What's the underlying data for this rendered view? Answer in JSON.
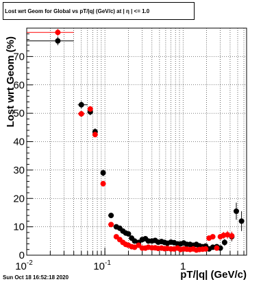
{
  "title": "Lost wrt Geom for Global vs pT/|q| (GeV/c) at | η | <= 1.0",
  "timestamp": "Sun Oct 18 16:52:18 2020",
  "chart_data": {
    "type": "scatter",
    "title": "Lost wrt Geom for Global vs pT/|q| (GeV/c) at | η | <= 1.0",
    "xlabel": "pT/|q| (GeV/c)",
    "ylabel": "Lost wrt Geom (%)",
    "xscale": "log",
    "xlim": [
      0.01,
      6.5
    ],
    "ylim": [
      0,
      80
    ],
    "grid": true,
    "x_ticks": [
      {
        "label": "10",
        "exp": "-2",
        "value": 0.01
      },
      {
        "label": "10",
        "exp": "-1",
        "value": 0.1
      },
      {
        "label": "1",
        "exp": "",
        "value": 1
      }
    ],
    "y_ticks": [
      "0",
      "10",
      "20",
      "30",
      "40",
      "50",
      "60",
      "70"
    ],
    "y_tick_values": [
      0,
      10,
      20,
      30,
      40,
      50,
      60,
      70
    ],
    "series": [
      {
        "color": "#000000",
        "x": [
          0.025,
          0.05,
          0.065,
          0.075,
          0.095,
          0.12,
          0.14,
          0.155,
          0.17,
          0.185,
          0.2,
          0.22,
          0.24,
          0.27,
          0.3,
          0.33,
          0.36,
          0.4,
          0.44,
          0.48,
          0.53,
          0.58,
          0.63,
          0.7,
          0.77,
          0.85,
          0.93,
          1.02,
          1.12,
          1.23,
          1.35,
          1.48,
          1.62,
          1.78,
          1.95,
          2.15,
          2.4,
          2.7,
          3.0,
          3.4,
          4.2,
          4.8,
          5.6
        ],
        "y": [
          75.5,
          53.0,
          50.5,
          43.5,
          29.0,
          14.0,
          10.0,
          9.5,
          8.5,
          7.8,
          7.5,
          6.0,
          5.0,
          4.5,
          5.5,
          5.8,
          5.0,
          5.0,
          5.2,
          4.6,
          4.8,
          4.5,
          4.2,
          4.6,
          4.4,
          4.0,
          4.0,
          4.3,
          3.8,
          3.8,
          3.5,
          3.8,
          3.3,
          3.0,
          3.2,
          2.2,
          2.8,
          3.0,
          2.5,
          4.5,
          6.5,
          15.5,
          12.0
        ],
        "xerr": [
          0.04,
          0.06,
          0.07,
          0.08,
          0.1,
          0.13,
          0.15,
          0.16,
          0.18,
          0.19,
          0.21,
          0.23,
          0.25,
          0.28,
          0.31,
          0.34,
          0.38,
          0.42,
          0.46,
          0.5,
          0.55,
          0.6,
          0.66,
          0.73,
          0.8,
          0.88,
          0.97,
          1.06,
          1.17,
          1.28,
          1.4,
          1.54,
          1.69,
          1.85,
          2.03,
          2.25,
          2.5,
          2.8,
          3.2,
          3.6,
          4.4,
          5.2,
          6.0
        ],
        "xerr_lo": [
          0.01,
          0.045,
          0.06,
          0.07,
          0.09,
          0.11,
          0.13,
          0.15,
          0.16,
          0.18,
          0.19,
          0.21,
          0.23,
          0.26,
          0.29,
          0.32,
          0.35,
          0.38,
          0.42,
          0.46,
          0.51,
          0.56,
          0.61,
          0.67,
          0.74,
          0.82,
          0.89,
          0.98,
          1.07,
          1.18,
          1.3,
          1.42,
          1.56,
          1.71,
          1.88,
          2.05,
          2.3,
          2.6,
          2.85,
          3.2,
          4.0,
          4.6,
          5.3
        ],
        "yerr": [
          1.5,
          1.2,
          1.2,
          1.2,
          1.2,
          0.9,
          0.8,
          0.8,
          0.7,
          0.7,
          0.7,
          0.6,
          0.6,
          0.6,
          0.6,
          0.6,
          0.6,
          0.6,
          0.6,
          0.6,
          0.6,
          0.6,
          0.6,
          0.6,
          0.6,
          0.6,
          0.6,
          0.6,
          0.6,
          0.6,
          0.6,
          0.6,
          0.6,
          0.6,
          0.7,
          0.7,
          0.8,
          0.9,
          1.0,
          1.2,
          1.6,
          3.0,
          3.5
        ]
      },
      {
        "color": "#ff0000",
        "x": [
          0.025,
          0.05,
          0.065,
          0.075,
          0.095,
          0.12,
          0.14,
          0.155,
          0.17,
          0.185,
          0.2,
          0.22,
          0.24,
          0.27,
          0.3,
          0.33,
          0.36,
          0.4,
          0.44,
          0.48,
          0.53,
          0.58,
          0.63,
          0.7,
          0.77,
          0.85,
          0.93,
          1.02,
          1.12,
          1.23,
          1.35,
          1.48,
          1.62,
          1.78,
          1.95,
          2.15,
          2.4,
          2.7,
          3.0,
          3.3,
          3.7,
          4.2
        ],
        "y": [
          78.5,
          49.8,
          51.5,
          42.5,
          25.2,
          10.8,
          6.5,
          5.5,
          4.5,
          3.8,
          3.5,
          3.0,
          2.8,
          3.5,
          2.5,
          2.5,
          2.8,
          2.6,
          2.6,
          2.4,
          2.5,
          2.3,
          2.4,
          2.2,
          2.2,
          2.5,
          2.0,
          2.2,
          2.1,
          2.0,
          2.2,
          1.8,
          2.0,
          2.1,
          2.2,
          6.0,
          6.5,
          2.5,
          6.5,
          7.0,
          7.2,
          6.8
        ],
        "xerr": [
          0.04,
          0.055,
          0.07,
          0.08,
          0.1,
          0.13,
          0.15,
          0.16,
          0.18,
          0.19,
          0.21,
          0.23,
          0.25,
          0.28,
          0.31,
          0.34,
          0.38,
          0.42,
          0.46,
          0.5,
          0.55,
          0.6,
          0.66,
          0.73,
          0.8,
          0.88,
          0.97,
          1.06,
          1.17,
          1.28,
          1.4,
          1.54,
          1.69,
          1.85,
          2.03,
          2.25,
          2.5,
          2.8,
          3.15,
          3.5,
          3.9,
          4.4
        ],
        "xerr_lo": [
          0.01,
          0.045,
          0.06,
          0.07,
          0.09,
          0.11,
          0.13,
          0.15,
          0.16,
          0.18,
          0.19,
          0.21,
          0.23,
          0.26,
          0.29,
          0.32,
          0.35,
          0.38,
          0.42,
          0.46,
          0.51,
          0.56,
          0.61,
          0.67,
          0.74,
          0.82,
          0.89,
          0.98,
          1.07,
          1.18,
          1.3,
          1.42,
          1.56,
          1.71,
          1.88,
          2.05,
          2.3,
          2.6,
          2.85,
          3.15,
          3.5,
          4.0
        ],
        "yerr": [
          1.2,
          1.0,
          1.0,
          1.0,
          1.0,
          0.8,
          0.6,
          0.6,
          0.5,
          0.5,
          0.5,
          0.4,
          0.4,
          0.4,
          0.4,
          0.4,
          0.4,
          0.4,
          0.4,
          0.4,
          0.4,
          0.4,
          0.4,
          0.4,
          0.4,
          0.4,
          0.4,
          0.4,
          0.4,
          0.4,
          0.4,
          0.4,
          0.4,
          0.5,
          0.6,
          0.8,
          0.9,
          0.8,
          1.0,
          1.2,
          1.4,
          1.5
        ]
      }
    ]
  }
}
